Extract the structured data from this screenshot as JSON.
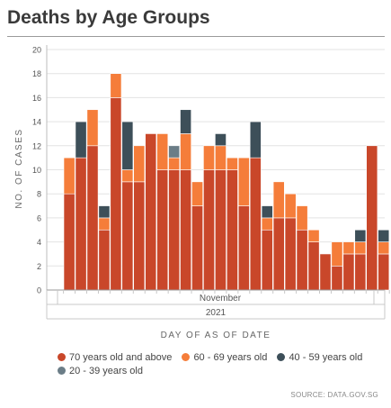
{
  "title": "Deaths by Age Groups",
  "source": "SOURCE: DATA.GOV.SG",
  "chart_data": {
    "type": "bar",
    "stacked": true,
    "ylabel": "NO. OF CASES",
    "xlabel": "DAY OF AS OF DATE",
    "x_month_label": "November",
    "x_year_label": "2021",
    "ylim": [
      0,
      20
    ],
    "yticks": [
      0,
      2,
      4,
      6,
      8,
      10,
      12,
      14,
      16,
      18,
      20
    ],
    "grid": true,
    "legend_position": "bottom",
    "series": [
      {
        "name": "70 years old and above",
        "color": "#c9472a",
        "values": [
          8,
          11,
          12,
          5,
          16,
          9,
          9,
          13,
          10,
          10,
          10,
          7,
          10,
          10,
          10,
          7,
          11,
          5,
          6,
          6,
          5,
          4,
          3,
          2,
          3,
          3,
          12,
          3
        ]
      },
      {
        "name": "60 - 69 years old",
        "color": "#f57d3a",
        "values": [
          3,
          0,
          3,
          1,
          2,
          1,
          3,
          0,
          3,
          1,
          3,
          2,
          2,
          2,
          1,
          4,
          0,
          1,
          3,
          2,
          2,
          1,
          0,
          2,
          1,
          1,
          0,
          1
        ]
      },
      {
        "name": "40 - 59 years old",
        "color": "#3d4f59",
        "values": [
          0,
          3,
          0,
          1,
          0,
          4,
          0,
          0,
          0,
          0,
          2,
          0,
          0,
          1,
          0,
          0,
          3,
          1,
          0,
          0,
          0,
          0,
          0,
          0,
          0,
          1,
          0,
          1
        ]
      },
      {
        "name": "20 - 39 years old",
        "color": "#6b7d87",
        "values": [
          0,
          0,
          0,
          0,
          0,
          0,
          0,
          0,
          0,
          1,
          0,
          0,
          0,
          0,
          0,
          0,
          0,
          0,
          0,
          0,
          0,
          0,
          0,
          0,
          0,
          0,
          0,
          0
        ]
      }
    ]
  }
}
